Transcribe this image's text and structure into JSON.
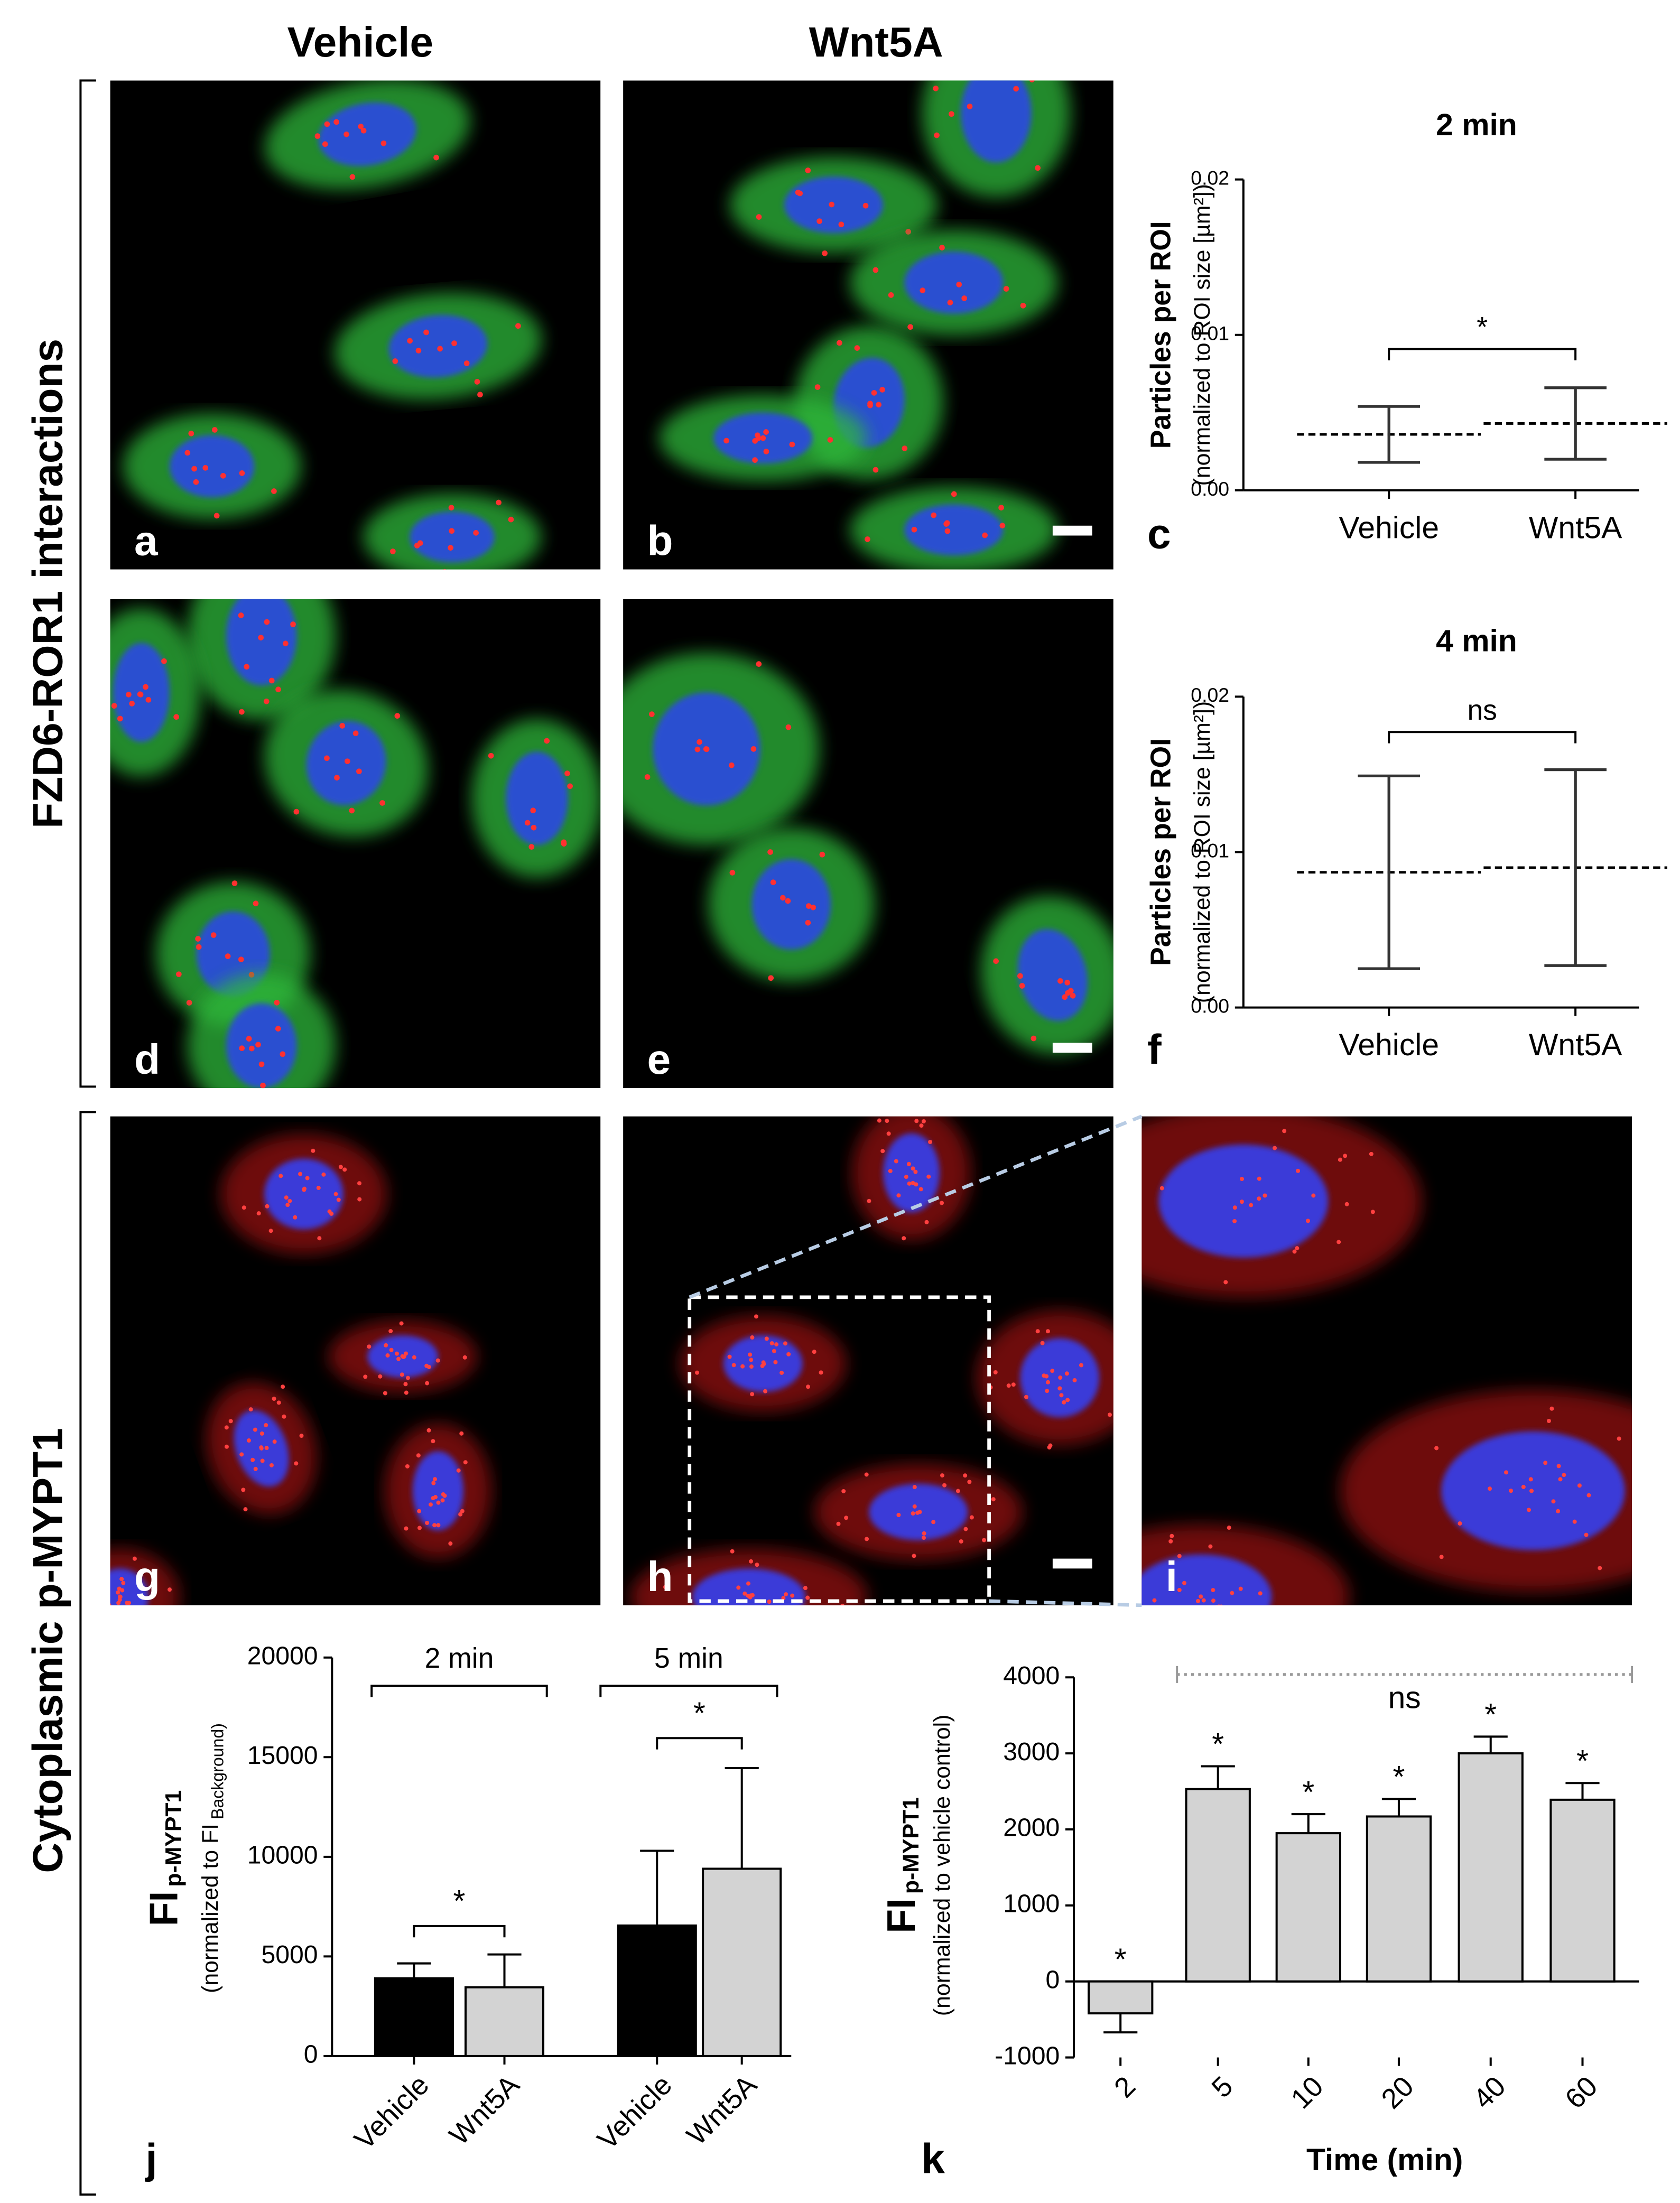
{
  "column_headers": [
    "Vehicle",
    "Wnt5A"
  ],
  "row_labels": [
    "FZD6-ROR1 interactions",
    "Cytoplasmic p-MYPT1"
  ],
  "micrograph_panels": [
    "a",
    "b",
    "d",
    "e",
    "g",
    "h",
    "i"
  ],
  "chart_data": [
    {
      "type": "errorbar",
      "panel": "c",
      "title": "2 min",
      "y_label": "Particles per ROI",
      "y_label_2": "(normalized to ROI size [µm²])",
      "categories": [
        "Vehicle",
        "Wnt5A"
      ],
      "values": [
        0.0036,
        0.0043
      ],
      "errors": [
        0.0018,
        0.0023
      ],
      "color": "#333333",
      "ylim": [
        0,
        0.02
      ],
      "yticks": [
        {
          "value": 0,
          "label": "0.00"
        },
        {
          "value": 0.01,
          "label": "0.01"
        },
        {
          "value": 0.02,
          "label": "0.02"
        }
      ],
      "annotation": "*"
    },
    {
      "type": "errorbar",
      "panel": "f",
      "title": "4 min",
      "y_label": "Particles per ROI",
      "y_label_2": "(normalized to ROI size [µm²])",
      "categories": [
        "Vehicle",
        "Wnt5A"
      ],
      "values": [
        0.0087,
        0.009
      ],
      "errors": [
        0.0062,
        0.0063
      ],
      "color": "#333333",
      "ylim": [
        0,
        0.02
      ],
      "yticks": [
        {
          "value": 0,
          "label": "0.00"
        },
        {
          "value": 0.01,
          "label": "0.01"
        },
        {
          "value": 0.02,
          "label": "0.02"
        }
      ],
      "annotation": "ns"
    },
    {
      "type": "bar",
      "panel": "j",
      "y_label": "FI",
      "y_label_sub": "p-MYPT1",
      "y_label_2": "(normalized to FI",
      "y_label_2_sub": "Background)",
      "groups": [
        "2 min",
        "5 min"
      ],
      "categories": [
        "Vehicle",
        "Wnt5A",
        "Vehicle",
        "Wnt5A"
      ],
      "values": [
        3900,
        3450,
        6550,
        9400
      ],
      "errors": [
        750,
        1650,
        3750,
        5050
      ],
      "colors": [
        "#000000",
        "#d3d3d3",
        "#000000",
        "#d3d3d3"
      ],
      "ylim": [
        0,
        20000
      ],
      "yticks": [
        0,
        5000,
        10000,
        15000,
        20000
      ],
      "annotations": [
        "*",
        "*"
      ]
    },
    {
      "type": "bar",
      "panel": "k",
      "y_label": "FI",
      "y_label_sub": "p-MYPT1",
      "y_label_2": "(normalized to vehicle control)",
      "x_label": "Time (min)",
      "categories": [
        "2",
        "5",
        "10",
        "20",
        "40",
        "60"
      ],
      "values": [
        -420,
        2530,
        1950,
        2170,
        3000,
        2390
      ],
      "errors": [
        250,
        300,
        250,
        230,
        220,
        220
      ],
      "color": "#d3d3d3",
      "ylim": [
        -1000,
        4000
      ],
      "yticks": [
        -1000,
        0,
        1000,
        2000,
        3000,
        4000
      ],
      "annotations": [
        "*",
        "*",
        "*",
        "*",
        "*",
        "*"
      ],
      "bracket_label": "ns"
    }
  ]
}
